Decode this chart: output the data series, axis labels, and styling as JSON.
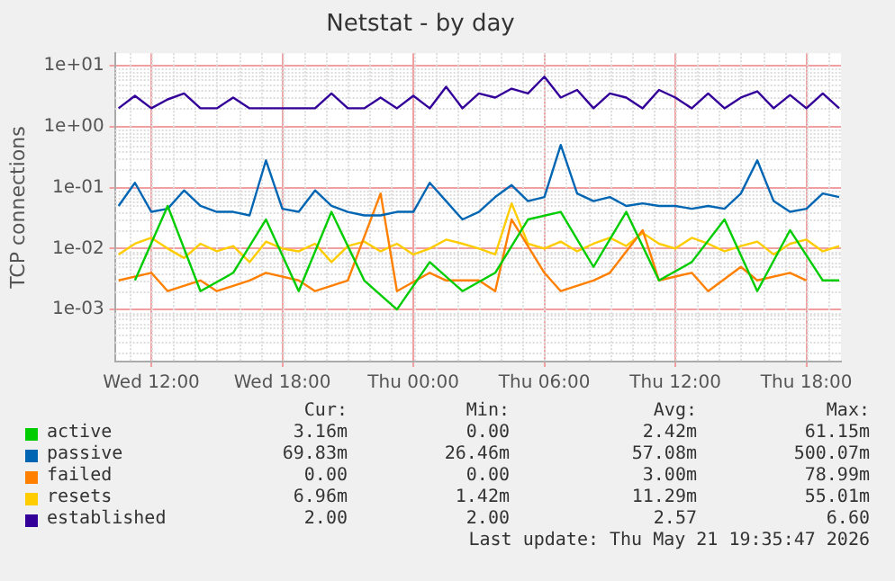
{
  "chart_data": {
    "type": "line",
    "title": "Netstat - by day",
    "ylabel": "TCP connections",
    "x": [
      "2026-05-20T10:30",
      "2026-05-20T11:15",
      "2026-05-20T12:00",
      "2026-05-20T12:45",
      "2026-05-20T13:30",
      "2026-05-20T14:15",
      "2026-05-20T15:00",
      "2026-05-20T15:45",
      "2026-05-20T16:30",
      "2026-05-20T17:15",
      "2026-05-20T18:00",
      "2026-05-20T18:45",
      "2026-05-20T19:30",
      "2026-05-20T20:15",
      "2026-05-20T21:00",
      "2026-05-20T21:45",
      "2026-05-20T22:30",
      "2026-05-20T23:15",
      "2026-05-21T00:00",
      "2026-05-21T00:45",
      "2026-05-21T01:30",
      "2026-05-21T02:15",
      "2026-05-21T03:00",
      "2026-05-21T03:45",
      "2026-05-21T04:30",
      "2026-05-21T05:15",
      "2026-05-21T06:00",
      "2026-05-21T06:45",
      "2026-05-21T07:30",
      "2026-05-21T08:15",
      "2026-05-21T09:00",
      "2026-05-21T09:45",
      "2026-05-21T10:30",
      "2026-05-21T11:15",
      "2026-05-21T12:00",
      "2026-05-21T12:45",
      "2026-05-21T13:30",
      "2026-05-21T14:15",
      "2026-05-21T15:00",
      "2026-05-21T15:45",
      "2026-05-21T16:30",
      "2026-05-21T17:15",
      "2026-05-21T18:00",
      "2026-05-21T18:45",
      "2026-05-21T19:30"
    ],
    "series": [
      {
        "name": "active",
        "color": "#00cc00",
        "values": [
          null,
          0.003,
          null,
          0.05,
          null,
          0.002,
          null,
          0.004,
          null,
          0.03,
          null,
          0.002,
          null,
          0.04,
          null,
          0.003,
          null,
          0.001,
          null,
          0.006,
          null,
          0.002,
          null,
          0.004,
          null,
          0.03,
          null,
          0.04,
          null,
          0.005,
          null,
          0.04,
          null,
          0.003,
          null,
          0.006,
          null,
          0.03,
          null,
          0.002,
          null,
          0.02,
          null,
          0.003,
          0.003
        ]
      },
      {
        "name": "passive",
        "color": "#0066b3",
        "values": [
          0.05,
          0.12,
          0.04,
          0.045,
          0.09,
          0.05,
          0.04,
          0.04,
          0.035,
          0.28,
          0.045,
          0.04,
          0.09,
          0.05,
          0.04,
          0.035,
          0.035,
          0.04,
          0.04,
          0.12,
          0.06,
          0.03,
          0.04,
          0.07,
          0.11,
          0.06,
          0.07,
          0.5,
          0.08,
          0.06,
          0.07,
          0.05,
          0.055,
          0.05,
          0.05,
          0.045,
          0.05,
          0.045,
          0.08,
          0.28,
          0.06,
          0.04,
          0.045,
          0.08,
          0.07
        ]
      },
      {
        "name": "failed",
        "color": "#ff8000",
        "values": [
          0.003,
          null,
          0.004,
          0.002,
          null,
          0.003,
          0.002,
          null,
          0.003,
          0.004,
          null,
          0.003,
          0.002,
          null,
          0.003,
          null,
          0.08,
          0.002,
          null,
          0.004,
          0.003,
          null,
          0.003,
          0.002,
          0.03,
          null,
          0.004,
          0.002,
          null,
          0.003,
          0.004,
          null,
          0.02,
          0.003,
          null,
          0.004,
          0.002,
          null,
          0.005,
          0.003,
          null,
          0.004,
          0.003,
          null,
          null
        ]
      },
      {
        "name": "resets",
        "color": "#ffcc00",
        "values": [
          0.008,
          0.012,
          0.015,
          0.01,
          0.007,
          0.012,
          0.009,
          0.011,
          0.006,
          0.013,
          0.01,
          0.009,
          0.012,
          0.006,
          0.011,
          0.013,
          0.009,
          0.012,
          0.008,
          0.01,
          0.014,
          0.012,
          0.01,
          0.008,
          0.055,
          0.012,
          0.01,
          0.013,
          0.009,
          0.012,
          0.015,
          0.011,
          0.018,
          0.012,
          0.01,
          0.015,
          0.012,
          0.009,
          0.011,
          0.013,
          0.008,
          0.012,
          0.014,
          0.009,
          0.011
        ]
      },
      {
        "name": "established",
        "color": "#330099",
        "values": [
          2,
          3.2,
          2,
          2.8,
          3.5,
          2,
          2,
          3,
          2,
          2,
          2,
          2,
          2,
          3.5,
          2,
          2,
          3,
          2,
          3.2,
          2,
          4.5,
          2,
          3.5,
          3,
          4.2,
          3.5,
          6.6,
          3,
          4,
          2,
          3.5,
          3,
          2,
          4,
          3,
          2,
          3.5,
          2,
          3,
          3.8,
          2,
          3.3,
          2,
          3.5,
          2
        ]
      }
    ],
    "log": "y",
    "ylim": [
      0.00014,
      16
    ],
    "yticks": [
      {
        "value": 0.001,
        "label": "1e-03"
      },
      {
        "value": 0.01,
        "label": "1e-02"
      },
      {
        "value": 0.1,
        "label": "1e-01"
      },
      {
        "value": 1,
        "label": "1e+00"
      },
      {
        "value": 10,
        "label": "1e+01"
      }
    ],
    "xlim": [
      "2026-05-20T10:20",
      "2026-05-21T19:35"
    ],
    "xticks": [
      {
        "value": "2026-05-20T12:00",
        "label": "Wed 12:00"
      },
      {
        "value": "2026-05-20T18:00",
        "label": "Wed 18:00"
      },
      {
        "value": "2026-05-21T00:00",
        "label": "Thu 00:00"
      },
      {
        "value": "2026-05-21T06:00",
        "label": "Thu 06:00"
      },
      {
        "value": "2026-05-21T12:00",
        "label": "Thu 12:00"
      },
      {
        "value": "2026-05-21T18:00",
        "label": "Thu 18:00"
      }
    ],
    "grid": true,
    "legend": "bottom",
    "marker": "none",
    "annotations": [
      "Cur:",
      "Min:",
      "Avg:",
      "Max:",
      "3.16m",
      "0.00",
      "2.42m",
      "61.15m",
      "69.83m",
      "26.46m",
      "57.08m",
      "500.07m",
      "0.00",
      "0.00",
      "3.00m",
      "78.99m",
      "6.96m",
      "1.42m",
      "11.29m",
      "55.01m",
      "2.00",
      "2.00",
      "2.57",
      "6.60",
      "Last update: Thu May 21 19:35:47 2026"
    ]
  }
}
